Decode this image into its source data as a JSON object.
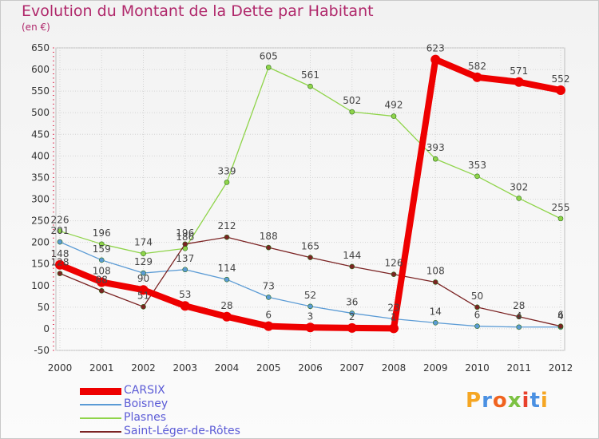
{
  "title": "Evolution du Montant de la Dette par Habitant",
  "subtitle": "(en €)",
  "logo": {
    "text": "Proxiti",
    "colors": [
      "#f5a623",
      "#4a90e2",
      "#f0631f",
      "#7cc242",
      "#e8412c",
      "#4a90e2",
      "#f5a623"
    ]
  },
  "chart_data": {
    "type": "line",
    "categories": [
      "2000",
      "2001",
      "2002",
      "2003",
      "2004",
      "2005",
      "2006",
      "2007",
      "2008",
      "2009",
      "2010",
      "2011",
      "2012"
    ],
    "ylim": [
      -50,
      650
    ],
    "yticks": [
      -50,
      0,
      50,
      100,
      150,
      200,
      250,
      300,
      350,
      400,
      450,
      500,
      550,
      600,
      650
    ],
    "ytick_labels": [
      "-50",
      "0",
      "50",
      "100",
      "150",
      "200",
      "250",
      "300",
      "350",
      "400",
      "450",
      "500",
      "550",
      "600",
      "650"
    ],
    "grid": true,
    "legend_position": "bottom-left",
    "series": [
      {
        "name": "CARSIX",
        "color": "#ee0000",
        "emphasis": true,
        "values": [
          148,
          108,
          90,
          53,
          28,
          6,
          3,
          2,
          1,
          623,
          582,
          571,
          552
        ],
        "labels": [
          "148",
          "108",
          "90",
          "53",
          "28",
          "6",
          "3",
          "2",
          "1",
          "623",
          "582",
          "571",
          "552"
        ]
      },
      {
        "name": "Boisney",
        "color": "#5b9bd5",
        "values": [
          201,
          159,
          129,
          137,
          114,
          73,
          52,
          36,
          23,
          14,
          6,
          4,
          4
        ],
        "labels": [
          "201",
          "159",
          "129",
          "137",
          "114",
          "73",
          "52",
          "36",
          "23",
          "14",
          "6",
          "4",
          "4"
        ]
      },
      {
        "name": "Plasnes",
        "color": "#8fd44a",
        "values": [
          226,
          196,
          174,
          186,
          339,
          605,
          561,
          502,
          492,
          393,
          353,
          302,
          255
        ],
        "labels": [
          "226",
          "196",
          "174",
          "186",
          "339",
          "605",
          "561",
          "502",
          "492",
          "393",
          "353",
          "302",
          "255"
        ]
      },
      {
        "name": "Saint-Léger-de-Rôtes",
        "color": "#7b2323",
        "values": [
          128,
          88,
          51,
          196,
          212,
          188,
          165,
          144,
          126,
          108,
          50,
          28,
          6
        ],
        "labels": [
          "128",
          "88",
          "51",
          "196",
          "212",
          "188",
          "165",
          "144",
          "126",
          "108",
          "50",
          "28",
          "6"
        ]
      }
    ]
  }
}
